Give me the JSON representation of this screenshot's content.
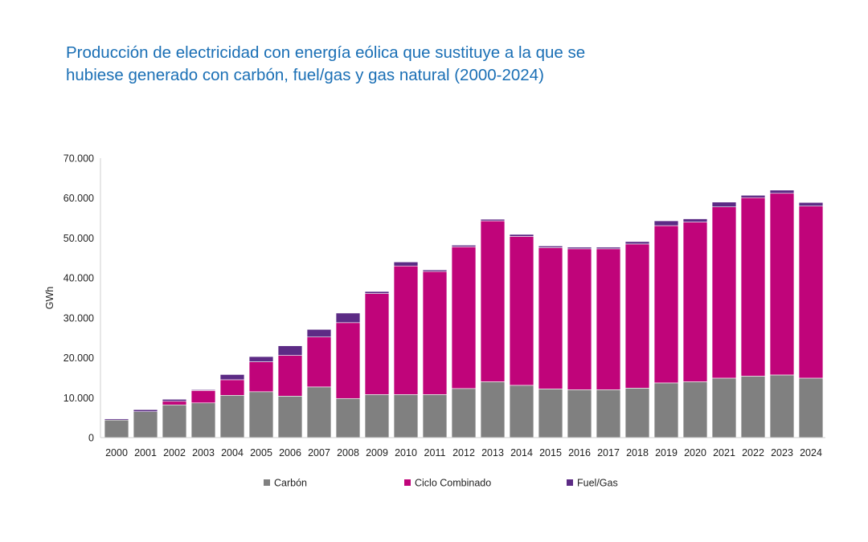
{
  "title_lines": [
    "Producción de electricidad con energía eólica que sustituye a la que se",
    "hubiese generado con carbón, fuel/gas y gas natural (2000-2024)"
  ],
  "chart_data": {
    "type": "bar",
    "stacked": true,
    "title": "Producción de electricidad con energía eólica que sustituye a la que se hubiese generado con carbón, fuel/gas y gas natural (2000-2024)",
    "xlabel": "",
    "ylabel": "GWh",
    "ylim": [
      0,
      70000
    ],
    "yticks": [
      0,
      10000,
      20000,
      30000,
      40000,
      50000,
      60000,
      70000
    ],
    "ytick_labels": [
      "0",
      "10.000",
      "20.000",
      "30.000",
      "40.000",
      "50.000",
      "60.000",
      "70.000"
    ],
    "grid": false,
    "legend_position": "bottom",
    "categories": [
      "2000",
      "2001",
      "2002",
      "2003",
      "2004",
      "2005",
      "2006",
      "2007",
      "2008",
      "2009",
      "2010",
      "2011",
      "2012",
      "2013",
      "2014",
      "2015",
      "2016",
      "2017",
      "2018",
      "2019",
      "2020",
      "2021",
      "2022",
      "2023",
      "2024"
    ],
    "series": [
      {
        "name": "Carbón",
        "color": "#808080",
        "values": [
          4400,
          6500,
          8200,
          8700,
          10600,
          11500,
          10400,
          12700,
          9800,
          10800,
          10800,
          10800,
          12300,
          14000,
          13100,
          12200,
          12000,
          12000,
          12400,
          13700,
          14000,
          14900,
          15400,
          15700,
          14900
        ]
      },
      {
        "name": "Ciclo Combinado",
        "color": "#c0047a",
        "values": [
          0,
          0,
          900,
          3100,
          3900,
          7500,
          10200,
          12500,
          19000,
          25300,
          32200,
          30800,
          35500,
          40300,
          37300,
          35400,
          35300,
          35300,
          36100,
          39400,
          40000,
          42900,
          44700,
          45500,
          43100
        ]
      },
      {
        "name": "Fuel/Gas",
        "color": "#5c2b85",
        "values": [
          300,
          500,
          500,
          200,
          1300,
          1300,
          2400,
          1900,
          2400,
          500,
          1000,
          400,
          400,
          400,
          500,
          400,
          400,
          400,
          600,
          1200,
          800,
          1200,
          600,
          800,
          900
        ]
      }
    ]
  }
}
